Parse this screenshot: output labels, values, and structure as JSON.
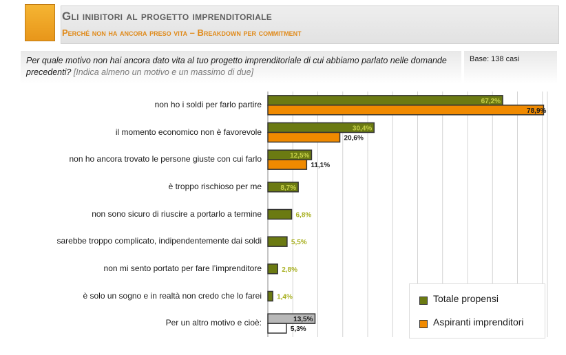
{
  "header": {
    "title": "Gli inibitori al progetto imprenditoriale",
    "subtitle": "Perché non ha ancora preso vita – Breakdown per commitment"
  },
  "question": {
    "text": "Per quale motivo non hai ancora dato vita al tuo progetto imprenditoriale di cui abbiamo parlato nelle domande precedenti?",
    "hint": "[Indica almeno un motivo e un massimo di due]"
  },
  "base": "Base: 138 casi",
  "colors": {
    "totale": "#6b7a12",
    "aspiranti": "#f08a00",
    "altro_totale": "#b8b8b8",
    "altro_aspiranti": "#ffffff",
    "label_totale": "#c8d24a",
    "grid": "#d4d4d4"
  },
  "chart_data": {
    "type": "bar",
    "orientation": "horizontal",
    "categories": [
      "non ho i soldi per farlo partire",
      "il momento economico non è favorevole",
      "non ho ancora trovato le persone giuste con cui farlo",
      "è troppo rischioso per me",
      "non sono sicuro di riuscire a portarlo a termine",
      "sarebbe troppo complicato, indipendentemente dai soldi",
      "non mi sento portato per fare l’imprenditore",
      "è solo un sogno e in realtà non credo che lo farei",
      "Per un altro motivo e cioè:"
    ],
    "series": [
      {
        "name": "Totale propensi",
        "values": [
          67.2,
          30.4,
          12.5,
          8.7,
          6.8,
          5.5,
          2.8,
          1.4,
          13.5
        ],
        "labels": [
          "67,2%",
          "30,4%",
          "12,5%",
          "8,7%",
          "6,8%",
          "5,5%",
          "2,8%",
          "1,4%",
          "13,5%"
        ]
      },
      {
        "name": "Aspiranti imprenditori",
        "values": [
          78.9,
          20.6,
          11.1,
          null,
          null,
          null,
          null,
          null,
          5.3
        ],
        "labels": [
          "78,9%",
          "20,6%",
          "11,1%",
          "",
          "",
          "",
          "",
          "",
          "5,3%"
        ]
      }
    ],
    "xlim": [
      0,
      80
    ],
    "grid": true,
    "legend_position": "bottom-right"
  }
}
